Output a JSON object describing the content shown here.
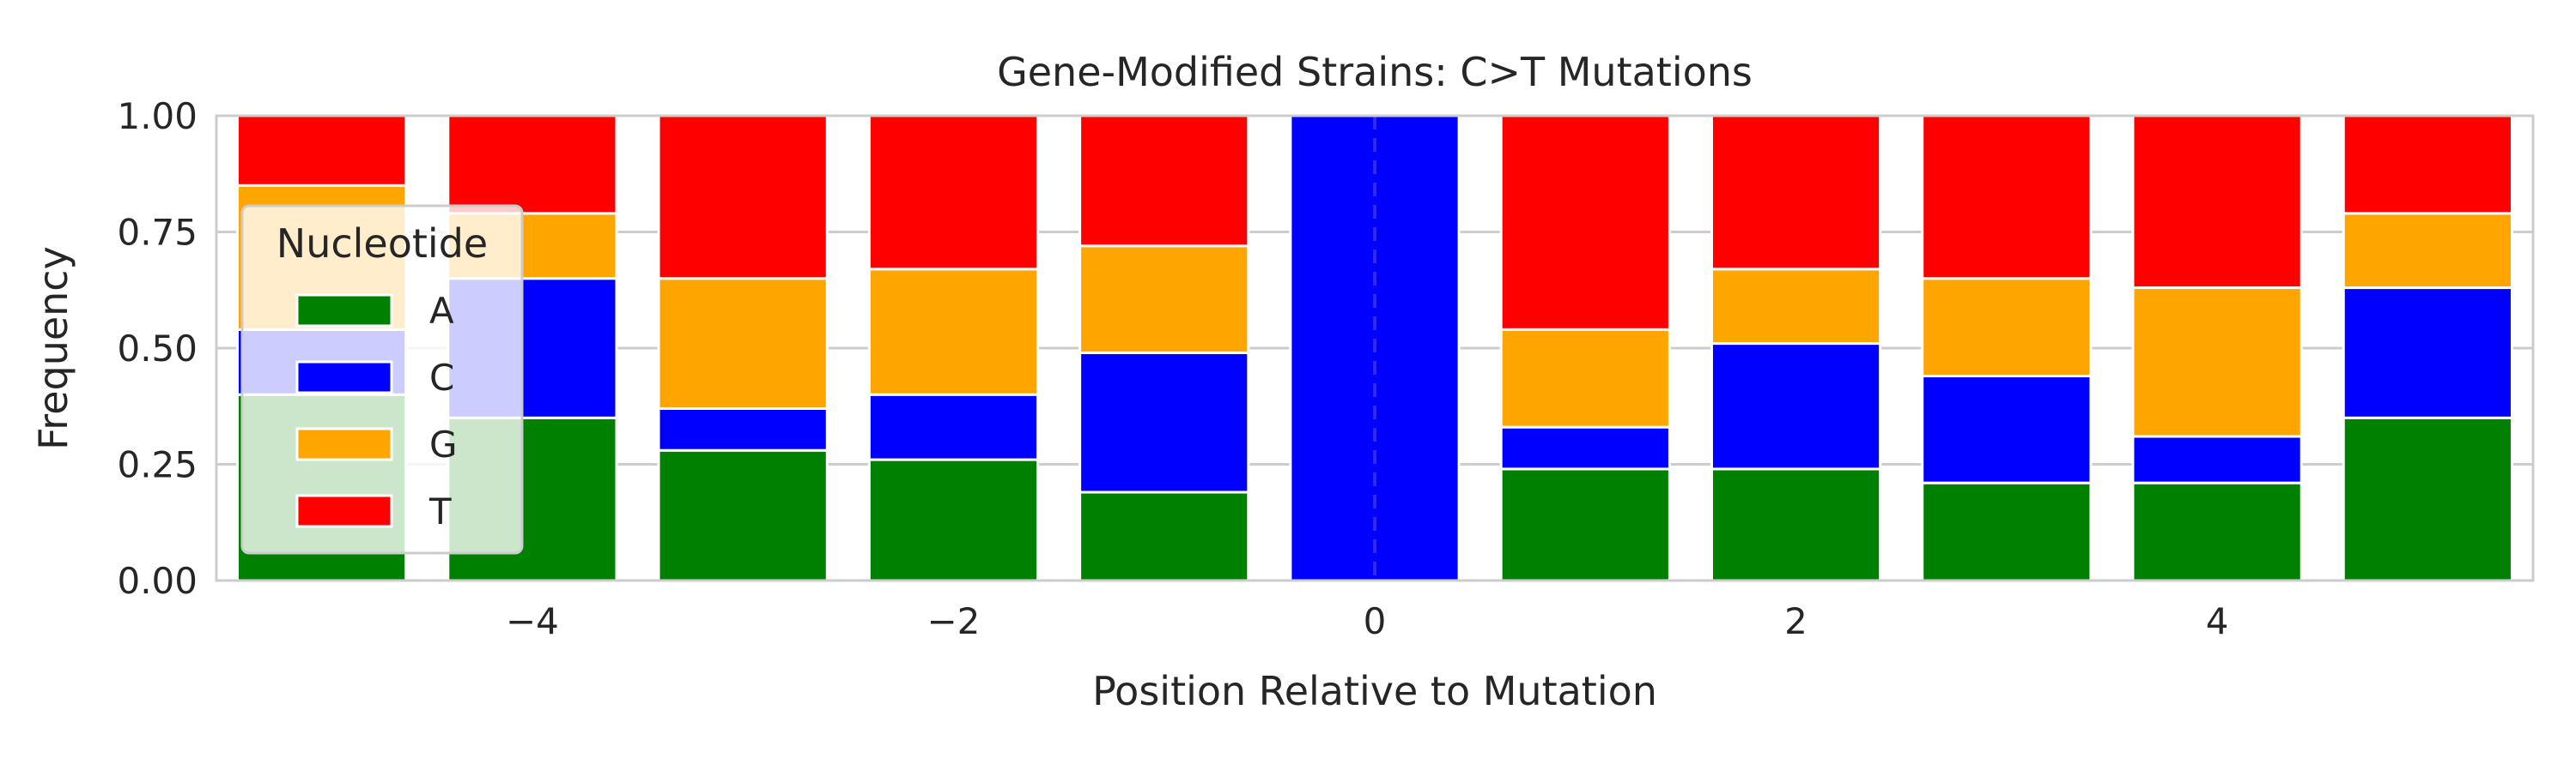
{
  "chart_data": {
    "type": "bar",
    "stacked": true,
    "title": "Gene-Modified Strains: C>T Mutations",
    "xlabel": "Position Relative to Mutation",
    "ylabel": "Frequency",
    "ylim": [
      0,
      1
    ],
    "xlim": [
      -5.5,
      5.5
    ],
    "grid": "y",
    "x": [
      -5,
      -4,
      -3,
      -2,
      -1,
      0,
      1,
      2,
      3,
      4,
      5
    ],
    "x_ticks": [
      -4,
      -2,
      0,
      2,
      4
    ],
    "x_tick_labels": [
      "−4",
      "−2",
      "0",
      "2",
      "4"
    ],
    "y_ticks": [
      0,
      0.25,
      0.5,
      0.75,
      1.0
    ],
    "y_tick_labels": [
      "0.00",
      "0.25",
      "0.50",
      "0.75",
      "1.00"
    ],
    "series": [
      {
        "name": "A",
        "color": "#008000",
        "values": [
          0.4,
          0.35,
          0.28,
          0.26,
          0.19,
          0.0,
          0.24,
          0.24,
          0.21,
          0.21,
          0.35
        ]
      },
      {
        "name": "C",
        "color": "#0000ff",
        "values": [
          0.14,
          0.3,
          0.09,
          0.14,
          0.3,
          1.0,
          0.09,
          0.27,
          0.23,
          0.1,
          0.28
        ]
      },
      {
        "name": "G",
        "color": "#ffa500",
        "values": [
          0.31,
          0.14,
          0.28,
          0.27,
          0.23,
          0.0,
          0.21,
          0.16,
          0.21,
          0.32,
          0.16
        ]
      },
      {
        "name": "T",
        "color": "#ff0000",
        "values": [
          0.15,
          0.21,
          0.35,
          0.33,
          0.28,
          0.0,
          0.46,
          0.33,
          0.35,
          0.37,
          0.21
        ]
      }
    ],
    "reference_line": {
      "x": 0,
      "style": "dashed",
      "color": "#4b3ee0"
    },
    "legend": {
      "title": "Nucleotide",
      "placement": "center-left"
    }
  }
}
